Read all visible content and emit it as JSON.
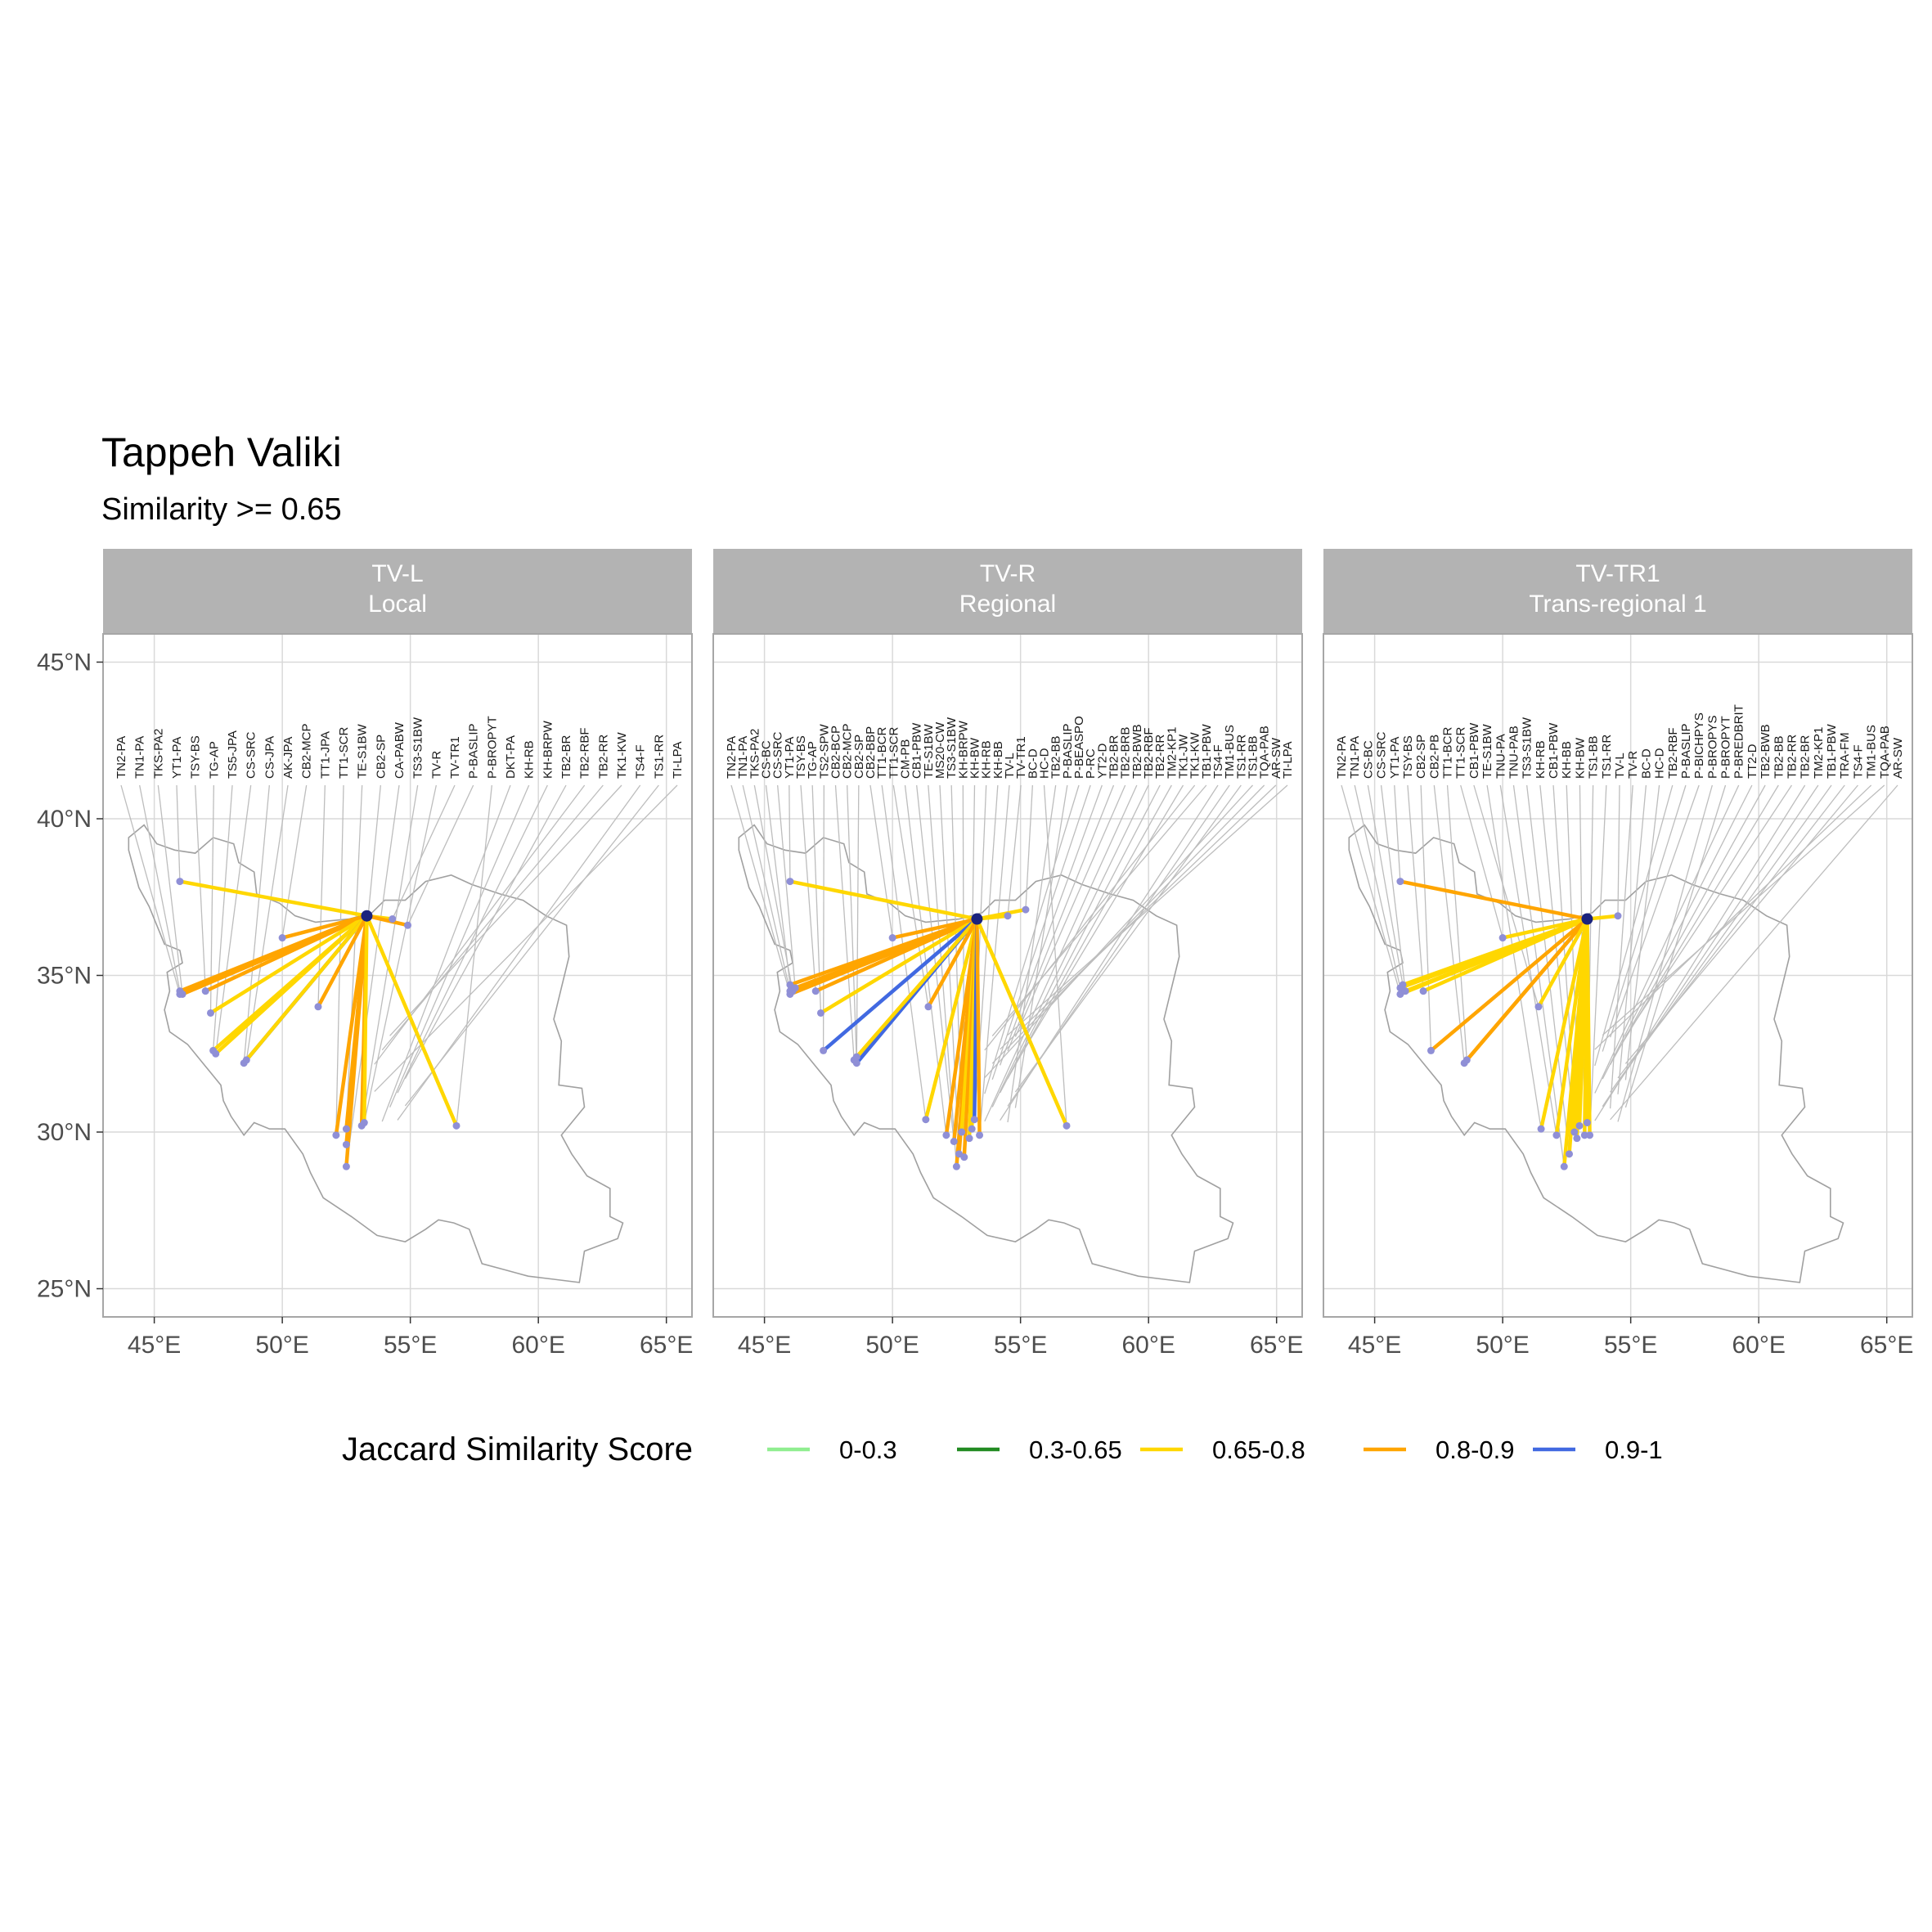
{
  "title": "Tappeh Valiki",
  "subtitle": "Similarity >= 0.65",
  "legend": {
    "title": "Jaccard Similarity Score",
    "entries": [
      {
        "label": "0-0.3",
        "color": "#90ee90"
      },
      {
        "label": "0.3-0.65",
        "color": "#228b22"
      },
      {
        "label": "0.65-0.8",
        "color": "#ffd700"
      },
      {
        "label": "0.8-0.9",
        "color": "#ffa500"
      },
      {
        "label": "0.9-1",
        "color": "#4169e1"
      }
    ]
  },
  "colors": {
    "strip_bg": "#b3b3b3",
    "grid": "#d9d9d9",
    "border": "#a6a6a6",
    "map_outline": "#a0a0a0",
    "leader_line": "#bdbdbd",
    "site_point": "#8f8fd6",
    "focal_point": "#1a237e"
  },
  "chart_data": {
    "type": "map",
    "lon_ticks": [
      "45°E",
      "50°E",
      "55°E",
      "60°E",
      "65°E"
    ],
    "lat_ticks": [
      "25°N",
      "30°N",
      "35°N",
      "40°N",
      "45°N"
    ],
    "lon_range": [
      43.0,
      66.0
    ],
    "lat_range": [
      24.1,
      45.9
    ],
    "panels": [
      {
        "strip": [
          "TV-L",
          "Local"
        ],
        "focal": [
          53.3,
          36.9
        ],
        "links": [
          {
            "site": "TN2-PA",
            "to": [
              46.0,
              34.4
            ],
            "score": "0.8-0.9"
          },
          {
            "site": "TN1-PA",
            "to": [
              46.0,
              34.5
            ],
            "score": "0.8-0.9"
          },
          {
            "site": "TKS-PA2",
            "to": [
              46.1,
              34.4
            ],
            "score": "0.8-0.9"
          },
          {
            "site": "YT1-PA",
            "to": [
              46.0,
              38.0
            ],
            "score": "0.65-0.8"
          },
          {
            "site": "TSY-BS",
            "to": [
              47.0,
              34.5
            ],
            "score": "0.8-0.9"
          },
          {
            "site": "TG-AP",
            "to": [
              47.2,
              33.8
            ],
            "score": "0.65-0.8"
          },
          {
            "site": "TS5-JPA",
            "to": [
              47.3,
              32.6
            ],
            "score": "0.65-0.8"
          },
          {
            "site": "CS-SRC",
            "to": [
              47.4,
              32.5
            ],
            "score": "0.65-0.8"
          },
          {
            "site": "CS-JPA",
            "to": [
              48.5,
              32.2
            ],
            "score": "0.9-1"
          },
          {
            "site": "AK-JPA",
            "to": [
              48.6,
              32.3
            ],
            "score": "0.65-0.8"
          },
          {
            "site": "CB2-MCP",
            "to": [
              50.0,
              36.2
            ],
            "score": "0.8-0.9"
          },
          {
            "site": "TT1-JPA",
            "to": [
              51.4,
              34.0
            ],
            "score": "0.8-0.9"
          },
          {
            "site": "TT1-SCR",
            "to": [
              52.1,
              29.9
            ],
            "score": "0.8-0.9"
          },
          {
            "site": "TE-S1BW",
            "to": [
              52.5,
              30.1
            ],
            "score": "0.8-0.9"
          },
          {
            "site": "CB2-SP",
            "to": [
              52.5,
              29.6
            ],
            "score": "0.8-0.9"
          },
          {
            "site": "CA-PABW",
            "to": [
              52.5,
              28.9
            ],
            "score": "0.8-0.9"
          },
          {
            "site": "TS3-S1BW",
            "to": [
              53.1,
              30.2
            ],
            "score": "0.8-0.9"
          },
          {
            "site": "TV-R",
            "to": [
              53.2,
              30.3
            ],
            "score": "0.65-0.8"
          },
          {
            "site": "TV-TR1",
            "to": [
              54.3,
              36.8
            ],
            "score": "0.65-0.8"
          },
          {
            "site": "P-BASLIP",
            "to": [
              54.9,
              36.6
            ],
            "score": "0.8-0.9"
          },
          {
            "site": "P-BROPYT",
            "to": [
              56.8,
              30.2
            ],
            "score": "0.65-0.8"
          },
          {
            "site": "DKT-PA",
            "to": null
          },
          {
            "site": "KH-RB",
            "to": null
          },
          {
            "site": "KH-BRPW",
            "to": null
          },
          {
            "site": "TB2-BR",
            "to": null
          },
          {
            "site": "TB2-RBF",
            "to": null
          },
          {
            "site": "TB2-RR",
            "to": null
          },
          {
            "site": "TK1-KW",
            "to": null
          },
          {
            "site": "TS4-F",
            "to": null
          },
          {
            "site": "TS1-RR",
            "to": null
          },
          {
            "site": "TI-LPA",
            "to": null
          }
        ]
      },
      {
        "strip": [
          "TV-R",
          "Regional"
        ],
        "focal": [
          53.3,
          36.8
        ],
        "links": [
          {
            "site": "TN2-PA",
            "to": [
              46.0,
              34.4
            ],
            "score": "0.8-0.9"
          },
          {
            "site": "TN1-PA",
            "to": [
              46.0,
              34.5
            ],
            "score": "0.8-0.9"
          },
          {
            "site": "TKS-PA2",
            "to": [
              46.1,
              34.5
            ],
            "score": "0.8-0.9"
          },
          {
            "site": "CS-BC",
            "to": [
              46.0,
              34.7
            ],
            "score": "0.8-0.9"
          },
          {
            "site": "CS-SRC",
            "to": [
              46.2,
              34.6
            ],
            "score": "0.8-0.9"
          },
          {
            "site": "YT1-PA",
            "to": [
              46.0,
              38.0
            ],
            "score": "0.65-0.8"
          },
          {
            "site": "TSY-BS",
            "to": [
              47.0,
              34.5
            ],
            "score": "0.8-0.9"
          },
          {
            "site": "TG-AP",
            "to": [
              47.2,
              33.8
            ],
            "score": "0.65-0.8"
          },
          {
            "site": "TS2-SPW",
            "to": [
              47.3,
              32.6
            ],
            "score": "0.9-1"
          },
          {
            "site": "CB2-BCP",
            "to": [
              48.5,
              32.3
            ],
            "score": "0.8-0.9"
          },
          {
            "site": "CB2-MCP",
            "to": [
              48.6,
              32.2
            ],
            "score": "0.9-1"
          },
          {
            "site": "CB2-SP",
            "to": [
              48.6,
              32.4
            ],
            "score": "0.65-0.8"
          },
          {
            "site": "CB2-BBP",
            "to": [
              50.0,
              36.2
            ],
            "score": "0.8-0.9"
          },
          {
            "site": "TT1-BCR",
            "to": [
              51.3,
              30.4
            ],
            "score": "0.65-0.8"
          },
          {
            "site": "TT1-SCR",
            "to": [
              51.4,
              34.0
            ],
            "score": "0.8-0.9"
          },
          {
            "site": "CM-PB",
            "to": [
              52.1,
              29.9
            ],
            "score": "0.8-0.9"
          },
          {
            "site": "CB1-PBW",
            "to": [
              52.4,
              29.7
            ],
            "score": "0.8-0.9"
          },
          {
            "site": "TE-S1BW",
            "to": [
              52.5,
              28.9
            ],
            "score": "0.8-0.9"
          },
          {
            "site": "MS20-CW",
            "to": [
              52.6,
              29.3
            ],
            "score": "0.8-0.9"
          },
          {
            "site": "TS3-S1BW",
            "to": [
              52.7,
              30.0
            ],
            "score": "0.65-0.8"
          },
          {
            "site": "KH-BRPW",
            "to": [
              52.8,
              29.2
            ],
            "score": "0.8-0.9"
          },
          {
            "site": "KH-BW",
            "to": [
              53.0,
              29.8
            ],
            "score": "0.65-0.8"
          },
          {
            "site": "KH-RB",
            "to": [
              53.1,
              30.1
            ],
            "score": "0.65-0.8"
          },
          {
            "site": "KH-BB",
            "to": [
              53.2,
              30.4
            ],
            "score": "0.9-1"
          },
          {
            "site": "TV-L",
            "to": [
              53.4,
              29.9
            ],
            "score": "0.8-0.9"
          },
          {
            "site": "TV-TR1",
            "to": [
              54.5,
              36.9
            ],
            "score": "0.65-0.8"
          },
          {
            "site": "BC-D",
            "to": [
              55.2,
              37.1
            ],
            "score": "0.65-0.8"
          },
          {
            "site": "HC-D",
            "to": [
              56.8,
              30.2
            ],
            "score": "0.65-0.8"
          },
          {
            "site": "TB2-BB",
            "to": null
          },
          {
            "site": "P-BASLIP",
            "to": null
          },
          {
            "site": "P-BEASPO",
            "to": null
          },
          {
            "site": "P-RC",
            "to": null
          },
          {
            "site": "YT2-D",
            "to": null
          },
          {
            "site": "TB2-BR",
            "to": null
          },
          {
            "site": "TB2-BRB",
            "to": null
          },
          {
            "site": "TB2-BWB",
            "to": null
          },
          {
            "site": "TB2-RBF",
            "to": null
          },
          {
            "site": "TB2-RR",
            "to": null
          },
          {
            "site": "TM2-KP1",
            "to": null
          },
          {
            "site": "TK1-JW",
            "to": null
          },
          {
            "site": "TK1-KW",
            "to": null
          },
          {
            "site": "TB1-PBW",
            "to": null
          },
          {
            "site": "TS4-F",
            "to": null
          },
          {
            "site": "TM1-BUS",
            "to": null
          },
          {
            "site": "TS1-RR",
            "to": null
          },
          {
            "site": "TS1-BB",
            "to": null
          },
          {
            "site": "TQA-PAB",
            "to": null
          },
          {
            "site": "AR-SW",
            "to": null
          },
          {
            "site": "TI-LPA",
            "to": null
          }
        ]
      },
      {
        "strip": [
          "TV-TR1",
          "Trans-regional 1"
        ],
        "focal": [
          53.3,
          36.8
        ],
        "links": [
          {
            "site": "TN2-PA",
            "to": [
              46.0,
              34.4
            ],
            "score": "0.65-0.8"
          },
          {
            "site": "TN1-PA",
            "to": [
              46.0,
              34.6
            ],
            "score": "0.65-0.8"
          },
          {
            "site": "CS-BC",
            "to": [
              46.1,
              34.7
            ],
            "score": "0.65-0.8"
          },
          {
            "site": "CS-SRC",
            "to": [
              46.2,
              34.5
            ],
            "score": "0.65-0.8"
          },
          {
            "site": "YT1-PA",
            "to": [
              46.0,
              38.0
            ],
            "score": "0.8-0.9"
          },
          {
            "site": "TSY-BS",
            "to": [
              46.9,
              34.5
            ],
            "score": "0.65-0.8"
          },
          {
            "site": "CB2-SP",
            "to": [
              47.2,
              32.6
            ],
            "score": "0.8-0.9"
          },
          {
            "site": "CB2-PB",
            "to": [
              48.5,
              32.2
            ],
            "score": "0.8-0.9"
          },
          {
            "site": "TT1-BCR",
            "to": [
              48.6,
              32.3
            ],
            "score": "0.8-0.9"
          },
          {
            "site": "TT1-SCR",
            "to": [
              50.0,
              36.2
            ],
            "score": "0.65-0.8"
          },
          {
            "site": "CB1-PBW",
            "to": [
              51.4,
              34.0
            ],
            "score": "0.65-0.8"
          },
          {
            "site": "TE-S1BW",
            "to": [
              51.5,
              30.1
            ],
            "score": "0.65-0.8"
          },
          {
            "site": "TNU-PA",
            "to": [
              52.1,
              29.9
            ],
            "score": "0.65-0.8"
          },
          {
            "site": "TNU-PAB",
            "to": [
              52.4,
              28.9
            ],
            "score": "0.65-0.8"
          },
          {
            "site": "TS3-S1BW",
            "to": [
              52.6,
              29.3
            ],
            "score": "0.65-0.8"
          },
          {
            "site": "KH-RB",
            "to": [
              52.8,
              30.0
            ],
            "score": "0.65-0.8"
          },
          {
            "site": "CB1-PBW",
            "to": [
              52.9,
              29.8
            ],
            "score": "0.65-0.8"
          },
          {
            "site": "KH-BB",
            "to": [
              53.0,
              30.2
            ],
            "score": "0.65-0.8"
          },
          {
            "site": "KH-BW",
            "to": [
              53.2,
              29.9
            ],
            "score": "0.65-0.8"
          },
          {
            "site": "TS1-BB",
            "to": [
              53.3,
              30.3
            ],
            "score": "0.65-0.8"
          },
          {
            "site": "TS1-RR",
            "to": [
              53.4,
              29.9
            ],
            "score": "0.65-0.8"
          },
          {
            "site": "TV-L",
            "to": [
              54.5,
              36.9
            ],
            "score": "0.65-0.8"
          },
          {
            "site": "TV-R",
            "to": null
          },
          {
            "site": "BC-D",
            "to": null
          },
          {
            "site": "HC-D",
            "to": null
          },
          {
            "site": "TB2-RBF",
            "to": null
          },
          {
            "site": "P-BASLIP",
            "to": null
          },
          {
            "site": "P-BICHPYS",
            "to": null
          },
          {
            "site": "P-BROPYS",
            "to": null
          },
          {
            "site": "P-BROPYT",
            "to": null
          },
          {
            "site": "P-BREDBRIT",
            "to": null
          },
          {
            "site": "TT2-D",
            "to": null
          },
          {
            "site": "TB2-BWB",
            "to": null
          },
          {
            "site": "TB2-BB",
            "to": null
          },
          {
            "site": "TB2-RR",
            "to": null
          },
          {
            "site": "TB2-BR",
            "to": null
          },
          {
            "site": "TM2-KP1",
            "to": null
          },
          {
            "site": "TB1-PBW",
            "to": null
          },
          {
            "site": "TRA-FM",
            "to": null
          },
          {
            "site": "TS4-F",
            "to": null
          },
          {
            "site": "TM1-BUS",
            "to": null
          },
          {
            "site": "TQA-PAB",
            "to": null
          },
          {
            "site": "AR-SW",
            "to": null
          }
        ]
      }
    ]
  }
}
